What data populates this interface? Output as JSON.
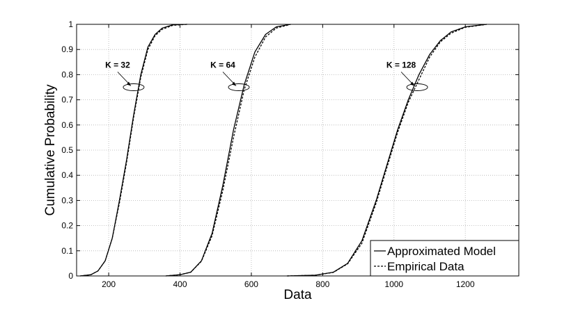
{
  "chart_data": {
    "type": "line",
    "xlabel": "Data",
    "ylabel": "Cumulative Probability",
    "xlim": [
      110,
      1350
    ],
    "ylim": [
      0,
      1
    ],
    "x_ticks": [
      "200",
      "400",
      "600",
      "800",
      "1000",
      "1200"
    ],
    "y_ticks": [
      "0",
      "0.1",
      "0.2",
      "0.3",
      "0.4",
      "0.5",
      "0.6",
      "0.7",
      "0.8",
      "0.9",
      "1"
    ],
    "grid": true,
    "legend_position": "bottom-right",
    "series": [
      {
        "name": "Approximated Model",
        "style": "solid",
        "color": "#000000",
        "groups": [
          [
            [
              120,
              0
            ],
            [
              150,
              0.005
            ],
            [
              170,
              0.02
            ],
            [
              190,
              0.06
            ],
            [
              210,
              0.15
            ],
            [
              230,
              0.3
            ],
            [
              250,
              0.46
            ],
            [
              270,
              0.64
            ],
            [
              290,
              0.8
            ],
            [
              310,
              0.91
            ],
            [
              330,
              0.96
            ],
            [
              350,
              0.985
            ],
            [
              380,
              0.998
            ],
            [
              420,
              1
            ]
          ],
          [
            [
              360,
              0
            ],
            [
              400,
              0.005
            ],
            [
              430,
              0.015
            ],
            [
              460,
              0.06
            ],
            [
              490,
              0.17
            ],
            [
              520,
              0.36
            ],
            [
              550,
              0.58
            ],
            [
              580,
              0.76
            ],
            [
              610,
              0.89
            ],
            [
              640,
              0.96
            ],
            [
              670,
              0.99
            ],
            [
              710,
              1
            ]
          ],
          [
            [
              700,
              0
            ],
            [
              780,
              0.003
            ],
            [
              830,
              0.015
            ],
            [
              870,
              0.05
            ],
            [
              910,
              0.14
            ],
            [
              950,
              0.3
            ],
            [
              980,
              0.44
            ],
            [
              1010,
              0.58
            ],
            [
              1040,
              0.7
            ],
            [
              1070,
              0.8
            ],
            [
              1100,
              0.88
            ],
            [
              1130,
              0.935
            ],
            [
              1160,
              0.97
            ],
            [
              1200,
              0.99
            ],
            [
              1260,
              1
            ]
          ]
        ]
      },
      {
        "name": "Empirical Data",
        "style": "dashed",
        "color": "#000000",
        "groups": [
          [
            [
              120,
              0
            ],
            [
              150,
              0.005
            ],
            [
              170,
              0.02
            ],
            [
              190,
              0.06
            ],
            [
              210,
              0.15
            ],
            [
              230,
              0.29
            ],
            [
              250,
              0.45
            ],
            [
              270,
              0.63
            ],
            [
              290,
              0.79
            ],
            [
              310,
              0.9
            ],
            [
              330,
              0.955
            ],
            [
              350,
              0.98
            ],
            [
              380,
              0.996
            ],
            [
              420,
              1
            ]
          ],
          [
            [
              360,
              0
            ],
            [
              400,
              0.005
            ],
            [
              430,
              0.015
            ],
            [
              460,
              0.058
            ],
            [
              490,
              0.16
            ],
            [
              520,
              0.34
            ],
            [
              550,
              0.55
            ],
            [
              580,
              0.74
            ],
            [
              610,
              0.87
            ],
            [
              640,
              0.95
            ],
            [
              670,
              0.985
            ],
            [
              710,
              1
            ]
          ],
          [
            [
              700,
              0
            ],
            [
              780,
              0.003
            ],
            [
              830,
              0.014
            ],
            [
              870,
              0.048
            ],
            [
              910,
              0.13
            ],
            [
              950,
              0.29
            ],
            [
              980,
              0.43
            ],
            [
              1010,
              0.57
            ],
            [
              1040,
              0.69
            ],
            [
              1070,
              0.78
            ],
            [
              1100,
              0.87
            ],
            [
              1130,
              0.93
            ],
            [
              1160,
              0.965
            ],
            [
              1200,
              0.988
            ],
            [
              1260,
              1
            ]
          ]
        ]
      }
    ],
    "annotations": [
      {
        "text": "K = 32",
        "x": 270,
        "y": 0.75
      },
      {
        "text": "K = 64",
        "x": 565,
        "y": 0.75
      },
      {
        "text": "K = 128",
        "x": 1065,
        "y": 0.75
      }
    ]
  }
}
